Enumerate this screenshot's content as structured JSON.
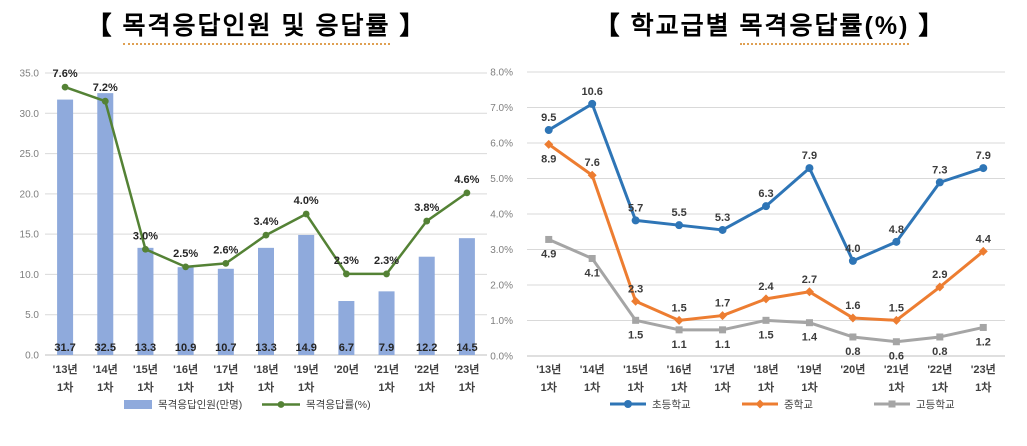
{
  "titles": {
    "left": {
      "open": "【 ",
      "underlined": "목격응답인원 및 응답률",
      "close": " 】"
    },
    "right": {
      "open": "【 ",
      "plain": "학교급별 ",
      "underlined": "목격응답률(%)",
      "close": " 】"
    }
  },
  "chart_data": [
    {
      "type": "bar",
      "subtype": "combo_bar_line",
      "title": "【 목격응답인원 및 응답률 】",
      "categories_top": [
        "'13년",
        "'14년",
        "'15년",
        "'16년",
        "'17년",
        "'18년",
        "'19년",
        "'20년",
        "'21년",
        "'22년",
        "'23년"
      ],
      "categories_bottom": [
        "1차",
        "1차",
        "1차",
        "1차",
        "1차",
        "1차",
        "1차",
        "",
        "1차",
        "1차",
        "1차"
      ],
      "bar_series": {
        "name": "목격응답인원(만명)",
        "color": "#8FAADC",
        "values": [
          31.7,
          32.5,
          13.3,
          10.9,
          10.7,
          13.3,
          14.9,
          6.7,
          7.9,
          12.2,
          14.5
        ]
      },
      "line_series": {
        "name": "목격응답률(%)",
        "color": "#548235",
        "values_percent": [
          7.6,
          7.2,
          3.0,
          2.5,
          2.6,
          3.4,
          4.0,
          2.3,
          2.3,
          3.8,
          4.6
        ],
        "labels": [
          "7.6%",
          "7.2%",
          "3.0%",
          "2.5%",
          "2.6%",
          "3.4%",
          "4.0%",
          "2.3%",
          "2.3%",
          "3.8%",
          "4.6%"
        ]
      },
      "y_axis": {
        "ticks": [
          "0.0",
          "5.0",
          "10.0",
          "15.0",
          "20.0",
          "25.0",
          "30.0",
          "35.0"
        ],
        "range": [
          0,
          35
        ]
      },
      "line_hidden_axis_range": [
        0,
        8
      ],
      "grid": true,
      "legend_position": "bottom"
    },
    {
      "type": "line",
      "title": "【 학교급별 목격응답률(%) 】",
      "categories_top": [
        "'13년",
        "'14년",
        "'15년",
        "'16년",
        "'17년",
        "'18년",
        "'19년",
        "'20년",
        "'21년",
        "'22년",
        "'23년"
      ],
      "categories_bottom": [
        "1차",
        "1차",
        "1차",
        "1차",
        "1차",
        "1차",
        "1차",
        "",
        "1차",
        "1차",
        "1차"
      ],
      "series": [
        {
          "name": "초등학교",
          "key": "elementary",
          "color": "#2E75B6",
          "marker": "circle",
          "values": [
            9.5,
            10.6,
            5.7,
            5.5,
            5.3,
            6.3,
            7.9,
            4.0,
            4.8,
            7.3,
            7.9
          ]
        },
        {
          "name": "중학교",
          "key": "middle",
          "color": "#ED7D31",
          "marker": "diamond",
          "values": [
            8.9,
            7.6,
            2.3,
            1.5,
            1.7,
            2.4,
            2.7,
            1.6,
            1.5,
            2.9,
            4.4
          ]
        },
        {
          "name": "고등학교",
          "key": "high",
          "color": "#A5A5A5",
          "marker": "square",
          "values": [
            4.9,
            4.1,
            1.5,
            1.1,
            1.1,
            1.5,
            1.4,
            0.8,
            0.6,
            0.8,
            1.2
          ]
        }
      ],
      "y_axis": {
        "ticks": [
          "0.0%",
          "1.0%",
          "2.0%",
          "3.0%",
          "4.0%",
          "5.0%",
          "6.0%",
          "7.0%",
          "8.0%"
        ],
        "range": [
          0,
          8
        ]
      },
      "plotted_value_scale": 0.67,
      "grid": true,
      "legend_position": "bottom"
    }
  ],
  "style": {
    "grid_color": "#D9D9D9",
    "baseline_color": "#BFBFBF",
    "tick_label_color": "#7F7F7F",
    "category_label_color": "#404040",
    "data_label_color": "#262626",
    "underline_color": "#DFA053"
  }
}
